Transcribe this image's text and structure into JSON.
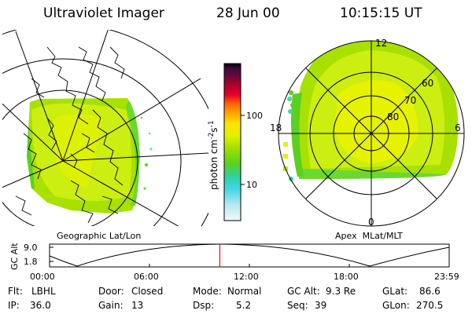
{
  "header": {
    "title": "Ultraviolet Imager",
    "date": "28 Jun 00",
    "time": "10:15:15 UT"
  },
  "geo_panel": {
    "label": "Geographic Lat/Lon"
  },
  "apex_panel": {
    "label": "Apex  MLat/MLT",
    "mlt_labels": {
      "top": "12",
      "left": "18",
      "right": "6",
      "bottom": "0"
    },
    "lat_labels": [
      "60",
      "70",
      "80"
    ]
  },
  "colorbar": {
    "unit_prefix": "photon cm",
    "unit_exp1": "-2",
    "unit_mid": "s",
    "unit_exp2": "-1",
    "ticks": [
      "100",
      "10"
    ],
    "colors": [
      "#000000",
      "#3b0a3a",
      "#6a0a3a",
      "#b0002a",
      "#e8002a",
      "#ff6a00",
      "#ffaa00",
      "#ffe000",
      "#d8f000",
      "#a0e000",
      "#5ad020",
      "#30d0a0",
      "#40d8e8",
      "#a0e8f0",
      "#e8f4f8"
    ]
  },
  "altitude_plot": {
    "ylabel": "GC Alt",
    "yticks": [
      "9.0",
      "1.8"
    ],
    "xticks": [
      "00:00",
      "06:00",
      "12:00",
      "18:00",
      "23:59"
    ],
    "current_time_fraction": 0.426
  },
  "info": {
    "flt_label": "Flt:",
    "flt_value": "LBHL",
    "ip_label": "IP:",
    "ip_value": "36.0",
    "door_label": "Door:",
    "door_value": "Closed",
    "gain_label": "Gain:",
    "gain_value": "13",
    "mode_label": "Mode:",
    "mode_value": "Normal",
    "dsp_label": "Dsp:",
    "dsp_value": "5.2",
    "gcalt_label": "GC Alt:",
    "gcalt_value": "9.3 Re",
    "seq_label": "Seq:",
    "seq_value": "39",
    "glat_label": "GLat:",
    "glat_value": "86.6",
    "glon_label": "GLon:",
    "glon_value": "270.5"
  }
}
